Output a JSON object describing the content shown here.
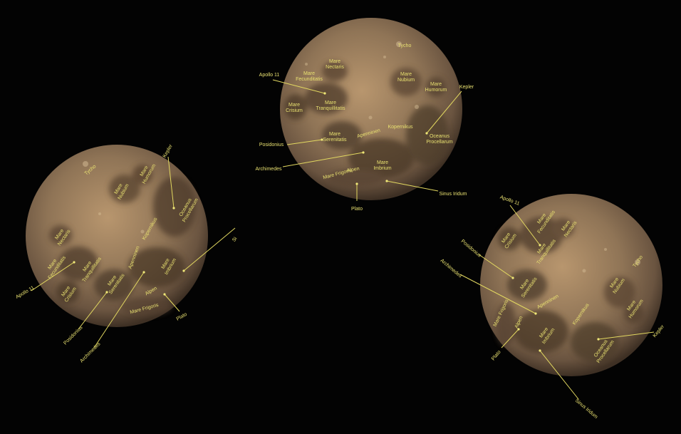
{
  "colors": {
    "background": "#030303",
    "label": "#e8e070",
    "moon_base": "#8a7052",
    "moon_dark": "#5a4432",
    "moon_light": "#c8a67c"
  },
  "moons": {
    "top": {
      "labels": {
        "tycho": "Tycho",
        "mare_nectaris": "Mare Nectaris",
        "mare_fecunditatis": "Mare Fecunditatis",
        "apollo11": "Apollo 11",
        "mare_crisium": "Mare Crisium",
        "mare_tranquillitatis": "Mare Tranquillitatis",
        "mare_nubium": "Mare Nubium",
        "mare_humorum": "Mare Humorum",
        "kepler": "Kepler",
        "kopernikus": "Kopernikus",
        "apenninen": "Apenninen",
        "posidonius": "Posidonius",
        "mare_serenitatis": "Mare Serenitatis",
        "oceanus": "Oceanus Procellarum",
        "archimedes": "Archimedes",
        "mare_imbrium": "Mare Imbrium",
        "alpen": "Alpen",
        "mare_frigoris": "Mare Frigoris",
        "sinus_iridum": "Sinus Iridum",
        "plato": "Plato"
      }
    },
    "left": {
      "labels": {
        "tycho": "Tycho",
        "mare_nubium": "Mare Nubium",
        "mare_humorum": "Mare Humorum",
        "kepler": "Kepler",
        "oceanus": "Oceanus Procellarum",
        "mare_nectaris": "Mare Nectaris",
        "kopernikus": "Kopernikus",
        "mare_fecunditatis": "Mare Fecunditatis",
        "mare_tranquillitatis": "Mare Tranquillitatis",
        "apenninen": "Apenninen",
        "mare_imbrium": "Mare Imbrium",
        "apollo11": "Apollo 11",
        "mare_serenitatis": "Mare Serenitatis",
        "mare_crisium": "Mare Crisium",
        "alpen": "Alpen",
        "mare_frigoris": "Mare Frigoris",
        "plato": "Plato",
        "posidonius": "Posidonius",
        "archimedes": "Archimedes",
        "sinus_iridum": "Si"
      }
    },
    "right": {
      "labels": {
        "apollo11": "Apollo 11",
        "mare_fecunditatis": "Mare Fecunditatis",
        "mare_nectaris": "Mare Nectaris",
        "mare_crisium": "Mare Crisium",
        "mare_tranquillitatis": "Mare Tranquillitatis",
        "posidonius": "Posidonius",
        "archimedes": "Archimedes",
        "mare_serenitatis": "Mare Serenitatis",
        "tycho": "Tycho",
        "mare_nubium": "Mare Nubium",
        "mare_humorum": "Mare Humorum",
        "apenninen": "Apenninen",
        "kopernikus": "Kopernikus",
        "mare_frigoris": "Mare Frigoris",
        "alpen": "Alpen",
        "mare_imbrium": "Mare Imbrium",
        "plato": "Plato",
        "kepler": "Kepler",
        "oceanus": "Oceanus Procellarum",
        "sinus_iridum": "Sinus Iridum"
      }
    }
  }
}
